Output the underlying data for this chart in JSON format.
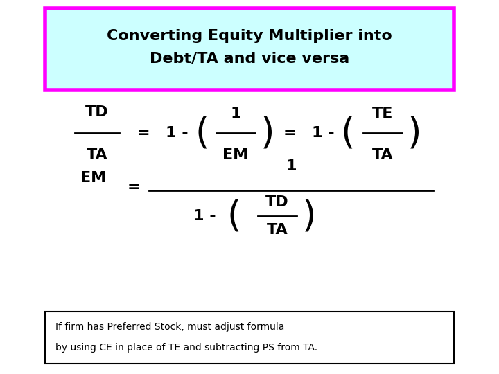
{
  "title_line1": "Converting Equity Multiplier into",
  "title_line2": "Debt/TA and vice versa",
  "title_bg_color": "#ccffff",
  "title_border_color": "#ff00ff",
  "bg_color": "#ffffff",
  "text_color": "#000000",
  "note_text_line1": "If firm has Preferred Stock, must adjust formula",
  "note_text_line2": "by using CE in place of TE and subtracting PS from TA.",
  "figsize": [
    7.2,
    5.4
  ],
  "dpi": 100,
  "title_border_lw": 4,
  "fs_formula": 16,
  "fs_paren": 38,
  "fs_note": 10,
  "fs_title": 16
}
